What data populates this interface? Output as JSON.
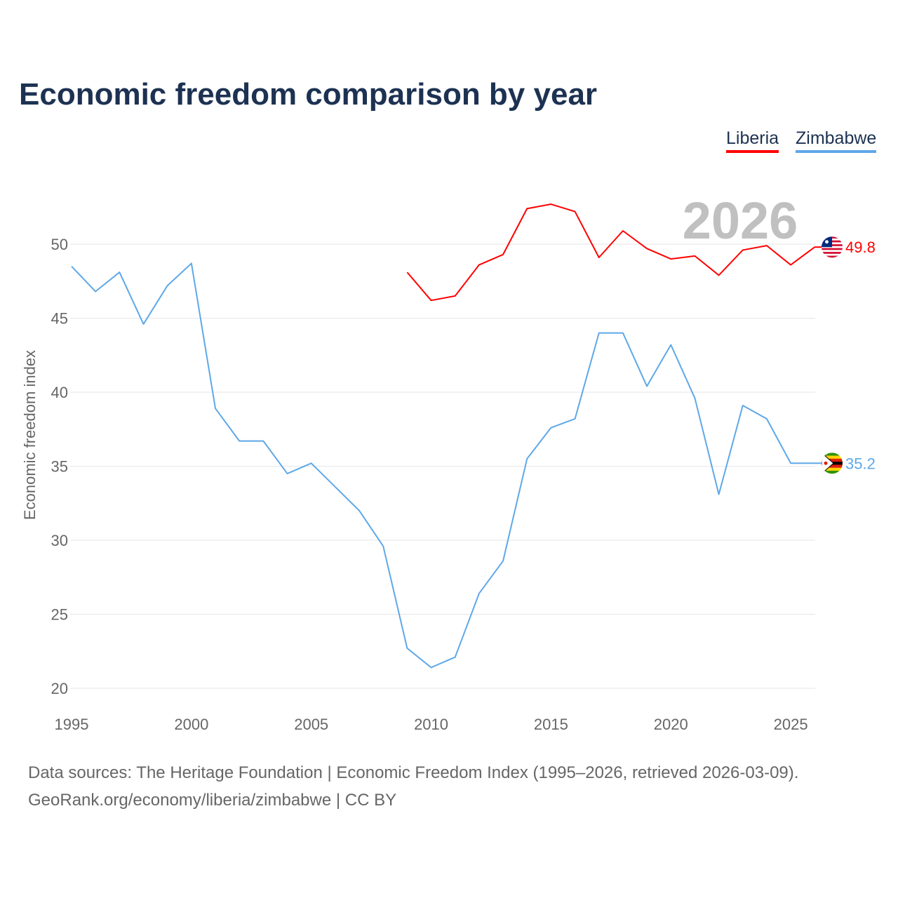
{
  "chart_data": {
    "type": "line",
    "title": "Economic freedom comparison by year",
    "xlabel": "",
    "ylabel": "Economic freedom index",
    "xlim": [
      1995,
      2026
    ],
    "ylim": [
      20,
      53
    ],
    "x_ticks": [
      1995,
      2000,
      2005,
      2010,
      2015,
      2020,
      2025
    ],
    "y_ticks": [
      20,
      25,
      30,
      35,
      40,
      45,
      50
    ],
    "grid": true,
    "legend_position": "top-right",
    "year_watermark": "2026",
    "series": [
      {
        "name": "Liberia",
        "color": "#ff0000",
        "end_label": "49.8",
        "x": [
          2009,
          2010,
          2011,
          2012,
          2013,
          2014,
          2015,
          2016,
          2017,
          2018,
          2019,
          2020,
          2021,
          2022,
          2023,
          2024,
          2025,
          2026
        ],
        "values": [
          48.1,
          46.2,
          46.5,
          48.6,
          49.3,
          52.4,
          52.7,
          52.2,
          49.1,
          50.9,
          49.7,
          49.0,
          49.2,
          47.9,
          49.6,
          49.9,
          48.6,
          49.8
        ]
      },
      {
        "name": "Zimbabwe",
        "color": "#5ea8e8",
        "end_label": "35.2",
        "x": [
          1995,
          1996,
          1997,
          1998,
          1999,
          2000,
          2001,
          2002,
          2003,
          2004,
          2005,
          2006,
          2007,
          2008,
          2009,
          2010,
          2011,
          2012,
          2013,
          2014,
          2015,
          2016,
          2017,
          2018,
          2019,
          2020,
          2021,
          2022,
          2023,
          2024,
          2025,
          2026
        ],
        "values": [
          48.5,
          46.8,
          48.1,
          44.6,
          47.2,
          48.7,
          38.9,
          36.7,
          36.7,
          34.5,
          35.2,
          33.6,
          32.0,
          29.6,
          22.7,
          21.4,
          22.1,
          26.4,
          28.6,
          35.5,
          37.6,
          38.2,
          44.0,
          44.0,
          40.4,
          43.2,
          39.6,
          33.1,
          39.1,
          38.2,
          35.2,
          35.2
        ]
      }
    ]
  },
  "footer": {
    "line1": "Data sources: The Heritage Foundation | Economic Freedom Index (1995–2026, retrieved 2026-03-09).",
    "line2": "GeoRank.org/economy/liberia/zimbabwe | CC BY"
  }
}
